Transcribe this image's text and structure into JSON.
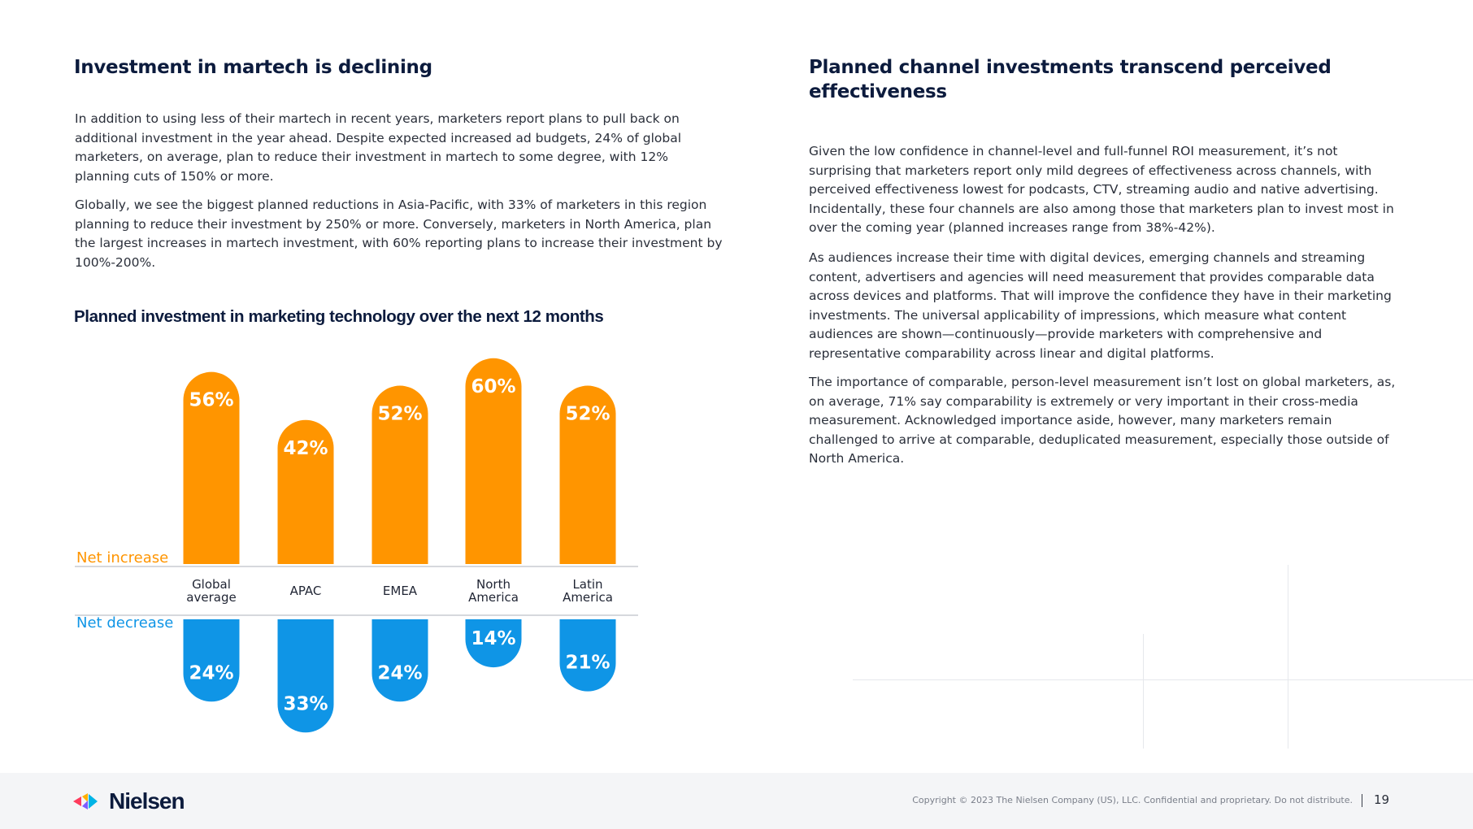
{
  "left": {
    "heading": "Investment in martech is declining",
    "paragraphs": [
      "In addition to using less of their martech in recent years, marketers report plans to pull back on additional investment in the year ahead. Despite expected increased ad budgets, 24% of global marketers, on average, plan to reduce their investment in martech to some degree, with 12% planning cuts of 150% or more.",
      "Globally, we see the biggest planned reductions in Asia-Pacific, with 33% of marketers in this region planning to reduce their investment by 250% or more. Conversely, marketers in North America, plan the largest increases in martech investment, with 60% reporting plans to increase their investment by 100%-200%."
    ],
    "chart_title": "Planned investment in marketing technology over the next 12 months"
  },
  "right": {
    "heading": "Planned channel investments transcend perceived effectiveness",
    "paragraphs": [
      "Given the low confidence in channel-level and full-funnel ROI measurement, it’s not surprising that marketers report only mild degrees of effectiveness across channels, with perceived effectiveness lowest for podcasts, CTV, streaming audio and native advertising. Incidentally, these four channels are also among those that marketers plan to invest most in over the coming year (planned increases range from 38%-42%).",
      "As audiences increase their time with digital devices, emerging channels and streaming content, advertisers and agencies will need measurement that provides comparable data across devices and platforms. That will improve the confidence they have in their marketing investments. The universal applicability of impressions, which measure what content audiences are shown—continuously—provide marketers with comprehensive and representative comparability across linear and digital platforms.",
      "The importance of comparable, person-level measurement isn’t lost on global marketers, as, on average, 71% say comparability is extremely or very important in their cross-media measurement. Acknowledged importance aside, however, many marketers remain challenged to arrive at comparable, deduplicated measurement, especially those outside of North America."
    ]
  },
  "chart_data": {
    "type": "bar",
    "categories": [
      [
        "Global",
        "average"
      ],
      [
        "APAC"
      ],
      [
        "EMEA"
      ],
      [
        "North",
        "America"
      ],
      [
        "Latin",
        "America"
      ]
    ],
    "series": [
      {
        "name": "Net increase",
        "values": [
          56,
          42,
          52,
          60,
          52
        ],
        "color": "#ff9500"
      },
      {
        "name": "Net decrease",
        "values": [
          24,
          33,
          24,
          14,
          21
        ],
        "color": "#0f95e6"
      }
    ],
    "value_suffix": "%"
  },
  "footer": {
    "logo": "Nielsen",
    "copyright": "Copyright © 2023 The Nielsen Company (US), LLC. Confidential and proprietary. Do not distribute.",
    "page_number": "19"
  }
}
